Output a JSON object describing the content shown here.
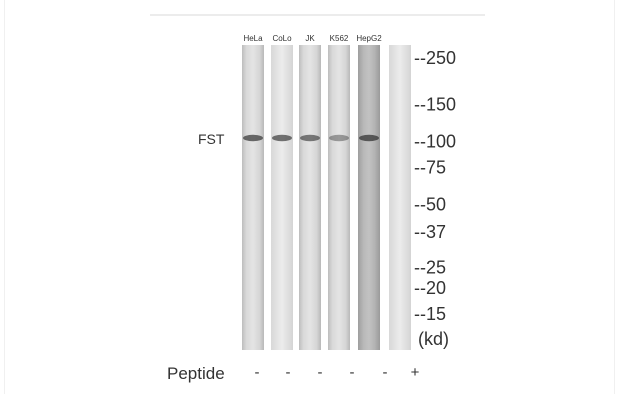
{
  "figure": {
    "protein": "FST",
    "lanes": [
      {
        "label": "HeLa",
        "peptide": "-",
        "band_intensity": 0.75
      },
      {
        "label": "CoLo",
        "peptide": "-",
        "band_intensity": 0.7
      },
      {
        "label": "JK",
        "peptide": "-",
        "band_intensity": 0.65
      },
      {
        "label": "K562",
        "peptide": "-",
        "band_intensity": 0.45
      },
      {
        "label": "HepG2",
        "peptide": "-",
        "band_intensity": 0.8
      },
      {
        "label": "",
        "peptide": "+",
        "band_intensity": 0
      }
    ],
    "markers": [
      {
        "label": "--250",
        "kd": 250
      },
      {
        "label": "--150",
        "kd": 150
      },
      {
        "label": "--100",
        "kd": 100
      },
      {
        "label": "--75",
        "kd": 75
      },
      {
        "label": "--50",
        "kd": 50
      },
      {
        "label": "--37",
        "kd": 37
      },
      {
        "label": "--25",
        "kd": 25
      },
      {
        "label": "--20",
        "kd": 20
      },
      {
        "label": "--15",
        "kd": 15
      }
    ],
    "unit": "(kd)",
    "peptide_label": "Peptide",
    "colors": {
      "lane_light": "#e2e2e2",
      "lane_dark": "#a9a9a9",
      "band": "#3c3c3c"
    }
  }
}
